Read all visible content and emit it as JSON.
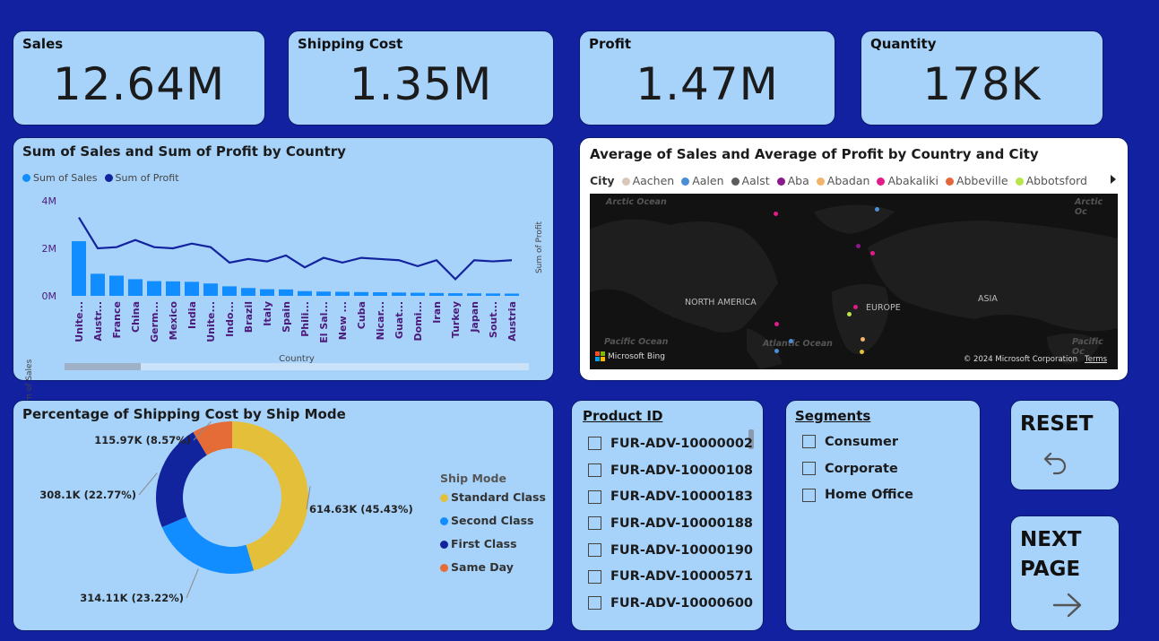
{
  "kpis": [
    {
      "title": "Sales",
      "value": "12.64M"
    },
    {
      "title": "Shipping Cost",
      "value": "1.35M"
    },
    {
      "title": "Profit",
      "value": "1.47M"
    },
    {
      "title": "Quantity",
      "value": "178K"
    }
  ],
  "colors": {
    "background": "#1121a0",
    "card": "#a7d3fb",
    "sales": "#118dff",
    "profit": "#12239e",
    "standard": "#e4c03a",
    "second": "#118dff",
    "first": "#12239e",
    "same_day": "#e66c37"
  },
  "combo": {
    "title": "Sum of Sales and Sum of Profit by Country",
    "legend_sales": "Sum of Sales",
    "legend_profit": "Sum of Profit",
    "y_left_label": "Sum of Sales",
    "y_right_label": "Sum of Profit",
    "x_label": "Country"
  },
  "map": {
    "title": "Average of Sales and Average of Profit by Country and City",
    "legend_title": "City",
    "cities": [
      {
        "name": "Aachen",
        "color": "#d9c7b8"
      },
      {
        "name": "Aalen",
        "color": "#4a8fd6"
      },
      {
        "name": "Aalst",
        "color": "#5c5c5c"
      },
      {
        "name": "Aba",
        "color": "#8a1a8a"
      },
      {
        "name": "Abadan",
        "color": "#f2b36b"
      },
      {
        "name": "Abakaliki",
        "color": "#e31a8a"
      },
      {
        "name": "Abbeville",
        "color": "#e4663a"
      },
      {
        "name": "Abbotsford",
        "color": "#b7e54a"
      }
    ],
    "labels": {
      "na": "NORTH AMERICA",
      "eu": "EUROPE",
      "asia": "ASIA",
      "arctic1": "Arctic Ocean",
      "arctic2": "Arctic Oc",
      "pacific1": "Pacific Ocean",
      "pacific2": "Pacific Oc",
      "atlantic": "Atlantic Ocean"
    },
    "bing": "Microsoft Bing",
    "copyright": "© 2024 Microsoft Corporation",
    "terms": "Terms"
  },
  "donut": {
    "title": "Percentage of Shipping Cost by Ship Mode",
    "legend_title": "Ship Mode",
    "slices": [
      {
        "name": "Standard Class",
        "value": 614.63,
        "label": "614.63K (45.43%)",
        "color": "#e4c03a"
      },
      {
        "name": "Second Class",
        "value": 314.11,
        "label": "314.11K (23.22%)",
        "color": "#118dff"
      },
      {
        "name": "First Class",
        "value": 308.1,
        "label": "308.1K (22.77%)",
        "color": "#12239e"
      },
      {
        "name": "Same Day",
        "value": 115.97,
        "label": "115.97K (8.57%)",
        "color": "#e66c37"
      }
    ]
  },
  "product_slicer": {
    "title": "Product ID",
    "items": [
      "FUR-ADV-10000002",
      "FUR-ADV-10000108",
      "FUR-ADV-10000183",
      "FUR-ADV-10000188",
      "FUR-ADV-10000190",
      "FUR-ADV-10000571",
      "FUR-ADV-10000600"
    ]
  },
  "segment_slicer": {
    "title": "Segments",
    "items": [
      "Consumer",
      "Corporate",
      "Home Office"
    ]
  },
  "buttons": {
    "reset": "RESET",
    "next": "NEXT PAGE"
  },
  "chart_data": {
    "type": "bar",
    "title": "Sum of Sales and Sum of Profit by Country",
    "xlabel": "Country",
    "ylabel": "Sum of Sales",
    "y2label": "Sum of Profit",
    "ylim": [
      0,
      4000000
    ],
    "yticks": [
      "0M",
      "2M",
      "4M"
    ],
    "categories": [
      "Unite...",
      "Austr...",
      "France",
      "China",
      "Germ...",
      "Mexico",
      "India",
      "Unite...",
      "Indo...",
      "Brazil",
      "Italy",
      "Spain",
      "Phili...",
      "El Sal...",
      "New ...",
      "Cuba",
      "Nicar...",
      "Guat...",
      "Domi...",
      "Iran",
      "Turkey",
      "Japan",
      "Sout...",
      "Austria"
    ],
    "series": [
      {
        "name": "Sum of Sales",
        "type": "bar",
        "values": [
          2300000,
          930000,
          850000,
          700000,
          620000,
          610000,
          590000,
          520000,
          400000,
          330000,
          280000,
          270000,
          200000,
          180000,
          170000,
          160000,
          150000,
          140000,
          130000,
          120000,
          110000,
          105000,
          100000,
          95000
        ]
      },
      {
        "name": "Sum of Profit",
        "type": "line",
        "values": [
          3300000,
          2000000,
          2050000,
          2350000,
          2050000,
          2000000,
          2200000,
          2050000,
          1400000,
          1550000,
          1450000,
          1700000,
          1200000,
          1600000,
          1400000,
          1600000,
          1550000,
          1500000,
          1250000,
          1500000,
          700000,
          1500000,
          1450000,
          1500000
        ]
      }
    ]
  }
}
